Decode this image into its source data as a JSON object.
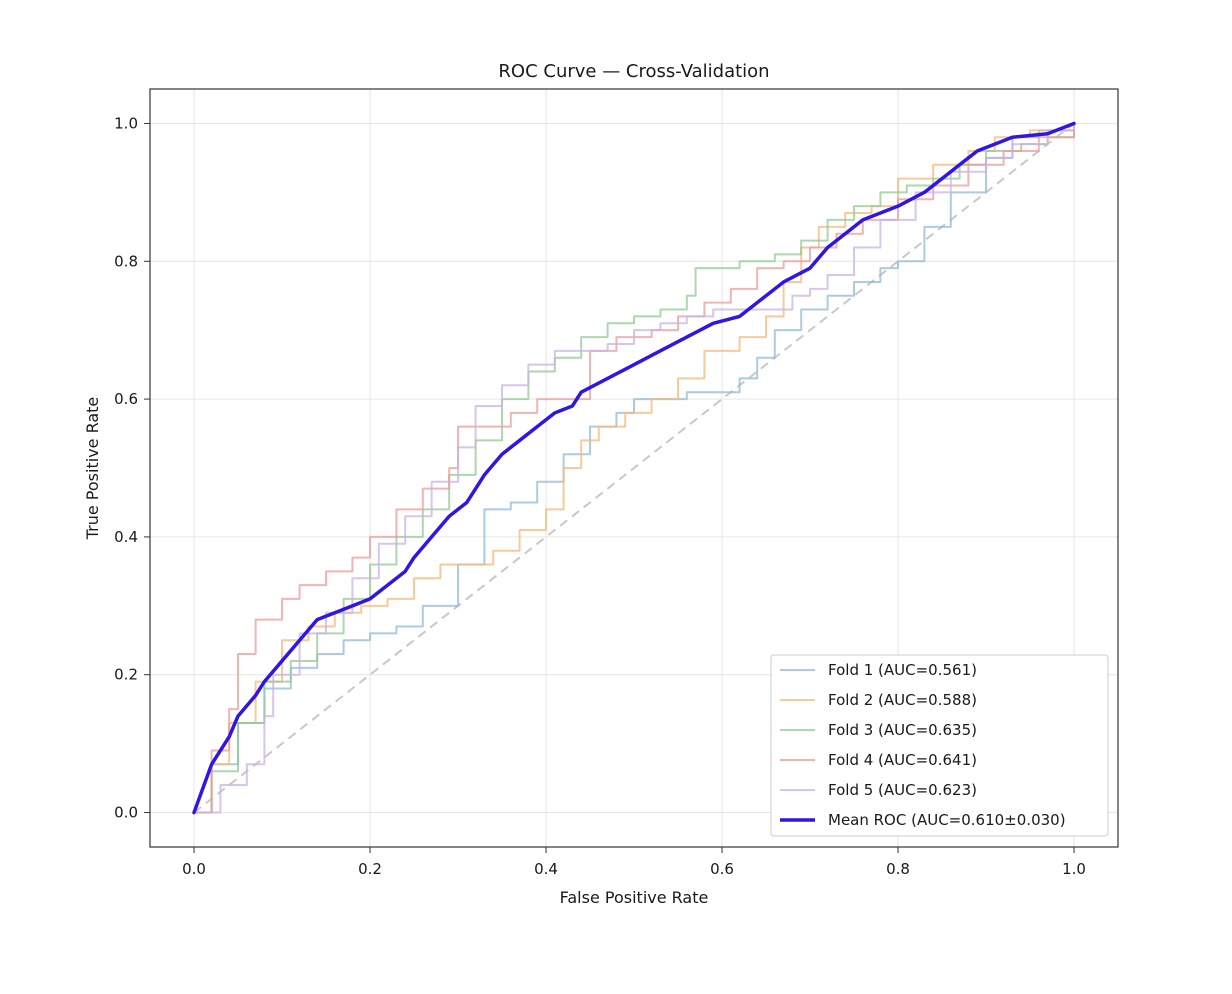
{
  "chart_data": {
    "type": "line",
    "title": "ROC Curve — Cross-Validation",
    "xlabel": "False Positive Rate",
    "ylabel": "True Positive Rate",
    "xlim": [
      -0.05,
      1.05
    ],
    "ylim": [
      -0.05,
      1.05
    ],
    "x_ticks": [
      0.0,
      0.2,
      0.4,
      0.6,
      0.8,
      1.0
    ],
    "y_ticks": [
      0.0,
      0.2,
      0.4,
      0.6,
      0.8,
      1.0
    ],
    "x_tick_labels": [
      "0.0",
      "0.2",
      "0.4",
      "0.6",
      "0.8",
      "1.0"
    ],
    "y_tick_labels": [
      "0.0",
      "0.2",
      "0.4",
      "0.6",
      "0.8",
      "1.0"
    ],
    "grid": true,
    "legend_position": "lower-right",
    "diagonal": {
      "x": [
        0,
        1
      ],
      "y": [
        0,
        1
      ],
      "color": "#c8c8c8",
      "style": "dashed"
    },
    "series": [
      {
        "name": "Fold 1 (AUC=0.561)",
        "color": "#8fb9d9",
        "style": "step",
        "x": [
          0,
          0.02,
          0.05,
          0.08,
          0.11,
          0.14,
          0.17,
          0.2,
          0.23,
          0.26,
          0.3,
          0.33,
          0.36,
          0.39,
          0.42,
          0.45,
          0.48,
          0.5,
          0.53,
          0.56,
          0.6,
          0.62,
          0.64,
          0.66,
          0.69,
          0.72,
          0.75,
          0.78,
          0.8,
          0.83,
          0.86,
          0.9,
          0.93,
          0.96,
          1.0
        ],
        "y": [
          0,
          0.07,
          0.13,
          0.18,
          0.21,
          0.23,
          0.25,
          0.26,
          0.27,
          0.3,
          0.36,
          0.44,
          0.45,
          0.48,
          0.52,
          0.56,
          0.58,
          0.6,
          0.6,
          0.61,
          0.61,
          0.63,
          0.66,
          0.7,
          0.73,
          0.75,
          0.77,
          0.79,
          0.8,
          0.85,
          0.9,
          0.95,
          0.98,
          0.99,
          1.0
        ]
      },
      {
        "name": "Fold 2 (AUC=0.588)",
        "color": "#f7b877",
        "style": "step",
        "x": [
          0,
          0.02,
          0.04,
          0.07,
          0.1,
          0.13,
          0.16,
          0.19,
          0.22,
          0.25,
          0.28,
          0.31,
          0.34,
          0.37,
          0.4,
          0.42,
          0.44,
          0.46,
          0.49,
          0.52,
          0.55,
          0.58,
          0.62,
          0.65,
          0.67,
          0.69,
          0.71,
          0.74,
          0.77,
          0.8,
          0.84,
          0.88,
          0.91,
          0.95,
          1.0
        ],
        "y": [
          0,
          0.07,
          0.13,
          0.19,
          0.25,
          0.27,
          0.29,
          0.3,
          0.31,
          0.34,
          0.36,
          0.36,
          0.38,
          0.41,
          0.44,
          0.5,
          0.54,
          0.56,
          0.58,
          0.6,
          0.63,
          0.67,
          0.69,
          0.72,
          0.77,
          0.82,
          0.85,
          0.87,
          0.88,
          0.92,
          0.94,
          0.96,
          0.98,
          0.99,
          1.0
        ]
      },
      {
        "name": "Fold 3 (AUC=0.635)",
        "color": "#92c992",
        "style": "step",
        "x": [
          0,
          0.02,
          0.05,
          0.08,
          0.11,
          0.14,
          0.17,
          0.2,
          0.23,
          0.26,
          0.29,
          0.32,
          0.35,
          0.38,
          0.41,
          0.44,
          0.47,
          0.5,
          0.53,
          0.56,
          0.57,
          0.62,
          0.66,
          0.69,
          0.72,
          0.75,
          0.78,
          0.81,
          0.84,
          0.87,
          0.9,
          0.94,
          0.97,
          1.0
        ],
        "y": [
          0,
          0.06,
          0.13,
          0.19,
          0.22,
          0.26,
          0.31,
          0.36,
          0.4,
          0.44,
          0.49,
          0.54,
          0.6,
          0.64,
          0.66,
          0.69,
          0.71,
          0.72,
          0.73,
          0.75,
          0.79,
          0.8,
          0.81,
          0.83,
          0.86,
          0.88,
          0.9,
          0.91,
          0.92,
          0.94,
          0.96,
          0.97,
          0.98,
          1.0
        ]
      },
      {
        "name": "Fold 4 (AUC=0.641)",
        "color": "#ef9a9a",
        "style": "step",
        "x": [
          0,
          0.02,
          0.04,
          0.05,
          0.07,
          0.1,
          0.12,
          0.15,
          0.18,
          0.2,
          0.23,
          0.26,
          0.29,
          0.3,
          0.33,
          0.36,
          0.39,
          0.42,
          0.45,
          0.48,
          0.52,
          0.55,
          0.58,
          0.61,
          0.64,
          0.67,
          0.7,
          0.73,
          0.76,
          0.8,
          0.84,
          0.88,
          0.92,
          0.96,
          1.0
        ],
        "y": [
          0,
          0.09,
          0.15,
          0.23,
          0.28,
          0.31,
          0.33,
          0.35,
          0.37,
          0.4,
          0.44,
          0.47,
          0.5,
          0.56,
          0.56,
          0.58,
          0.6,
          0.6,
          0.67,
          0.69,
          0.7,
          0.72,
          0.74,
          0.76,
          0.79,
          0.8,
          0.82,
          0.84,
          0.86,
          0.89,
          0.91,
          0.94,
          0.96,
          0.98,
          1.0
        ]
      },
      {
        "name": "Fold 5 (AUC=0.623)",
        "color": "#c9b2e4",
        "style": "step",
        "x": [
          0,
          0.03,
          0.06,
          0.08,
          0.09,
          0.12,
          0.15,
          0.18,
          0.21,
          0.24,
          0.27,
          0.3,
          0.32,
          0.35,
          0.38,
          0.41,
          0.44,
          0.47,
          0.5,
          0.53,
          0.56,
          0.59,
          0.62,
          0.65,
          0.68,
          0.7,
          0.72,
          0.75,
          0.78,
          0.82,
          0.86,
          0.9,
          0.93,
          0.97,
          1.0
        ],
        "y": [
          0,
          0.04,
          0.07,
          0.14,
          0.2,
          0.26,
          0.29,
          0.34,
          0.39,
          0.43,
          0.48,
          0.53,
          0.59,
          0.62,
          0.65,
          0.67,
          0.67,
          0.68,
          0.7,
          0.71,
          0.72,
          0.73,
          0.73,
          0.73,
          0.75,
          0.76,
          0.78,
          0.82,
          0.86,
          0.9,
          0.93,
          0.95,
          0.97,
          0.99,
          1.0
        ]
      },
      {
        "name": "Mean ROC (AUC=0.610±0.030)",
        "color": "#2f15e6",
        "style": "line",
        "bold": true,
        "x": [
          0,
          0.02,
          0.04,
          0.05,
          0.07,
          0.08,
          0.1,
          0.12,
          0.14,
          0.16,
          0.18,
          0.2,
          0.22,
          0.24,
          0.25,
          0.27,
          0.29,
          0.31,
          0.33,
          0.35,
          0.37,
          0.39,
          0.41,
          0.43,
          0.44,
          0.47,
          0.5,
          0.53,
          0.56,
          0.59,
          0.62,
          0.65,
          0.67,
          0.7,
          0.72,
          0.74,
          0.76,
          0.78,
          0.8,
          0.83,
          0.85,
          0.87,
          0.89,
          0.91,
          0.93,
          0.97,
          1.0
        ],
        "y": [
          0,
          0.07,
          0.11,
          0.14,
          0.17,
          0.19,
          0.22,
          0.25,
          0.28,
          0.29,
          0.3,
          0.31,
          0.33,
          0.35,
          0.37,
          0.4,
          0.43,
          0.45,
          0.49,
          0.52,
          0.54,
          0.56,
          0.58,
          0.59,
          0.61,
          0.63,
          0.65,
          0.67,
          0.69,
          0.71,
          0.72,
          0.75,
          0.77,
          0.79,
          0.82,
          0.84,
          0.86,
          0.87,
          0.88,
          0.9,
          0.92,
          0.94,
          0.96,
          0.97,
          0.98,
          0.985,
          1.0
        ]
      }
    ]
  }
}
